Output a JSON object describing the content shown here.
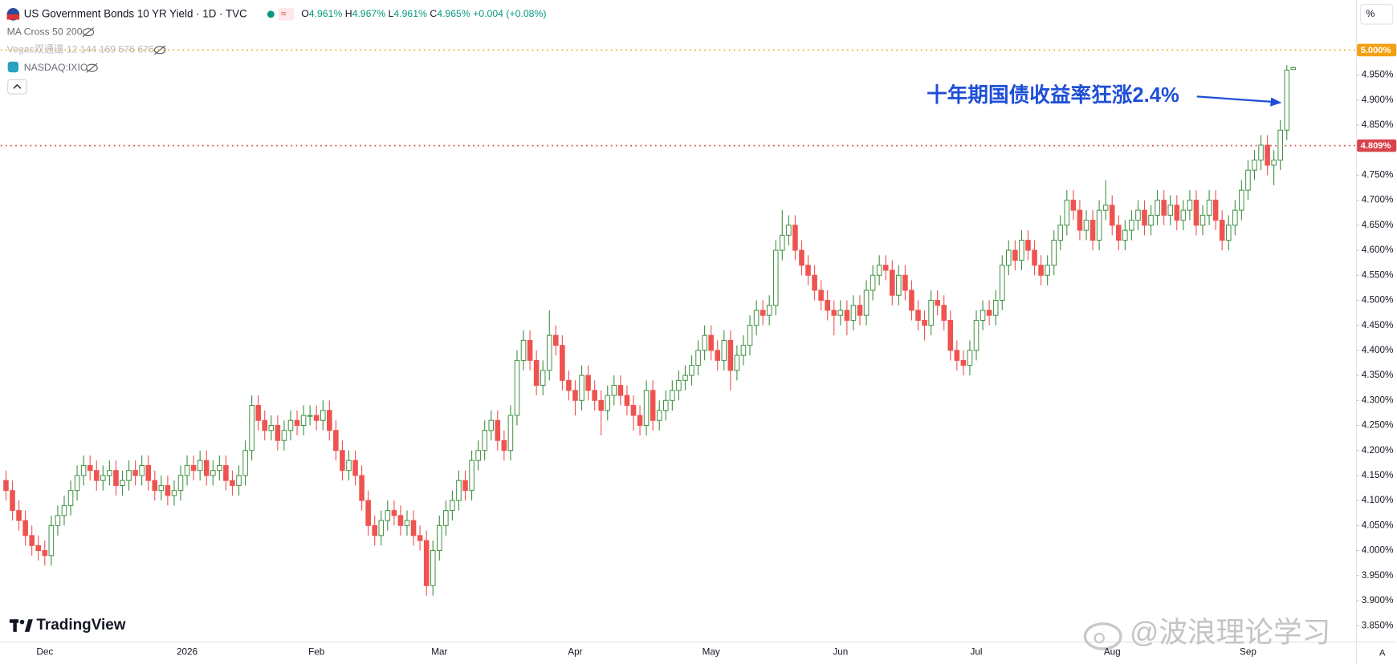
{
  "ui": {
    "symbol": "US Government Bonds 10 YR Yield · 1D · TVC",
    "ohlc": [
      {
        "key": "O",
        "value": "4.961%"
      },
      {
        "key": "H",
        "value": "4.967%"
      },
      {
        "key": "L",
        "value": "4.961%"
      },
      {
        "key": "C",
        "value": "4.965%"
      }
    ],
    "change": "+0.004 (+0.08%)",
    "indicators": [
      "MA Cross 50 200",
      "Vegas双通道 12 144 169 576 676",
      "NASDAQ:IXIC"
    ],
    "axis_unit": "%",
    "auto_button": "A",
    "brand": "TradingView",
    "watermark": "@波浪理论学习"
  },
  "chart_data": {
    "type": "candlestick",
    "up_color": "#3f9142",
    "down_color": "#ef5350",
    "annotation": "十年期国债收益率狂涨2.4%",
    "annotation_color": "#1f4fd6",
    "ylim": [
      3.818,
      5.1
    ],
    "yticks": [
      {
        "value": 3.85,
        "label": "3.850%"
      },
      {
        "value": 3.9,
        "label": "3.900%"
      },
      {
        "value": 3.95,
        "label": "3.950%"
      },
      {
        "value": 4.0,
        "label": "4.000%"
      },
      {
        "value": 4.05,
        "label": "4.050%"
      },
      {
        "value": 4.1,
        "label": "4.100%"
      },
      {
        "value": 4.15,
        "label": "4.150%"
      },
      {
        "value": 4.2,
        "label": "4.200%"
      },
      {
        "value": 4.25,
        "label": "4.250%"
      },
      {
        "value": 4.3,
        "label": "4.300%"
      },
      {
        "value": 4.35,
        "label": "4.350%"
      },
      {
        "value": 4.4,
        "label": "4.400%"
      },
      {
        "value": 4.45,
        "label": "4.450%"
      },
      {
        "value": 4.5,
        "label": "4.500%"
      },
      {
        "value": 4.55,
        "label": "4.550%"
      },
      {
        "value": 4.6,
        "label": "4.600%"
      },
      {
        "value": 4.65,
        "label": "4.650%"
      },
      {
        "value": 4.7,
        "label": "4.700%"
      },
      {
        "value": 4.75,
        "label": "4.750%"
      },
      {
        "value": 4.85,
        "label": "4.850%"
      },
      {
        "value": 4.9,
        "label": "4.900%"
      },
      {
        "value": 4.95,
        "label": "4.950%"
      }
    ],
    "price_lines": [
      {
        "value": 5.0,
        "label": "5.000%",
        "color": "#f5a011"
      },
      {
        "value": 4.809,
        "label": "4.809%",
        "color": "#d9434a"
      }
    ],
    "categories": [
      null,
      null,
      null,
      null,
      null,
      null,
      "Dec",
      null,
      null,
      null,
      null,
      null,
      null,
      null,
      null,
      null,
      null,
      null,
      null,
      null,
      null,
      null,
      null,
      null,
      null,
      null,
      null,
      null,
      "2026",
      null,
      null,
      null,
      null,
      null,
      null,
      null,
      null,
      null,
      null,
      null,
      null,
      null,
      null,
      null,
      null,
      null,
      null,
      null,
      "Feb",
      null,
      null,
      null,
      null,
      null,
      null,
      null,
      null,
      null,
      null,
      null,
      null,
      null,
      null,
      null,
      null,
      null,
      null,
      "Mar",
      null,
      null,
      null,
      null,
      null,
      null,
      null,
      null,
      null,
      null,
      null,
      null,
      null,
      null,
      null,
      null,
      null,
      null,
      null,
      null,
      "Apr",
      null,
      null,
      null,
      null,
      null,
      null,
      null,
      null,
      null,
      null,
      null,
      null,
      null,
      null,
      null,
      null,
      null,
      null,
      null,
      null,
      "May",
      null,
      null,
      null,
      null,
      null,
      null,
      null,
      null,
      null,
      null,
      null,
      null,
      null,
      null,
      null,
      null,
      null,
      null,
      null,
      "Jun",
      null,
      null,
      null,
      null,
      null,
      null,
      null,
      null,
      null,
      null,
      null,
      null,
      null,
      null,
      null,
      null,
      null,
      null,
      null,
      null,
      "Jul",
      null,
      null,
      null,
      null,
      null,
      null,
      null,
      null,
      null,
      null,
      null,
      null,
      null,
      null,
      null,
      null,
      null,
      null,
      null,
      null,
      "Aug",
      null,
      null,
      null,
      null,
      null,
      null,
      null,
      null,
      null,
      null,
      null,
      null,
      null,
      null,
      null,
      null,
      null,
      null,
      null,
      null,
      "Sep",
      null,
      null,
      null,
      null,
      null,
      null,
      null
    ],
    "open": [
      4.14,
      4.12,
      4.08,
      4.06,
      4.03,
      4.01,
      4.0,
      3.99,
      4.05,
      4.07,
      4.09,
      4.12,
      4.15,
      4.17,
      4.16,
      4.14,
      4.15,
      4.16,
      4.13,
      4.14,
      4.16,
      4.15,
      4.17,
      4.14,
      4.12,
      4.13,
      4.11,
      4.12,
      4.15,
      4.17,
      4.16,
      4.18,
      4.15,
      4.16,
      4.17,
      4.14,
      4.13,
      4.15,
      4.2,
      4.29,
      4.26,
      4.24,
      4.25,
      4.22,
      4.24,
      4.26,
      4.25,
      4.27,
      4.27,
      4.26,
      4.28,
      4.24,
      4.2,
      4.16,
      4.18,
      4.15,
      4.1,
      4.05,
      4.03,
      4.06,
      4.08,
      4.07,
      4.05,
      4.06,
      4.03,
      4.02,
      3.93,
      4.0,
      4.05,
      4.08,
      4.1,
      4.14,
      4.12,
      4.18,
      4.2,
      4.24,
      4.26,
      4.22,
      4.2,
      4.27,
      4.38,
      4.42,
      4.38,
      4.33,
      4.36,
      4.43,
      4.41,
      4.34,
      4.32,
      4.3,
      4.35,
      4.32,
      4.3,
      4.28,
      4.31,
      4.33,
      4.31,
      4.29,
      4.27,
      4.25,
      4.32,
      4.26,
      4.28,
      4.3,
      4.32,
      4.34,
      4.35,
      4.37,
      4.4,
      4.43,
      4.4,
      4.38,
      4.42,
      4.36,
      4.39,
      4.41,
      4.45,
      4.48,
      4.47,
      4.49,
      4.6,
      4.63,
      4.65,
      4.6,
      4.57,
      4.55,
      4.52,
      4.5,
      4.48,
      4.47,
      4.48,
      4.46,
      4.49,
      4.47,
      4.52,
      4.55,
      4.57,
      4.56,
      4.51,
      4.55,
      4.52,
      4.48,
      4.46,
      4.45,
      4.5,
      4.49,
      4.46,
      4.4,
      4.38,
      4.37,
      4.4,
      4.46,
      4.48,
      4.47,
      4.5,
      4.57,
      4.6,
      4.58,
      4.62,
      4.6,
      4.57,
      4.55,
      4.57,
      4.62,
      4.65,
      4.7,
      4.68,
      4.64,
      4.66,
      4.62,
      4.68,
      4.69,
      4.65,
      4.62,
      4.64,
      4.66,
      4.68,
      4.65,
      4.67,
      4.7,
      4.67,
      4.69,
      4.66,
      4.68,
      4.7,
      4.65,
      4.67,
      4.7,
      4.66,
      4.62,
      4.65,
      4.68,
      4.72,
      4.76,
      4.78,
      4.81,
      4.77,
      4.78,
      4.84,
      4.961
    ],
    "high": [
      4.16,
      4.14,
      4.1,
      4.08,
      4.05,
      4.03,
      4.02,
      4.07,
      4.09,
      4.11,
      4.14,
      4.17,
      4.19,
      4.19,
      4.18,
      4.17,
      4.18,
      4.18,
      4.16,
      4.18,
      4.18,
      4.19,
      4.19,
      4.16,
      4.15,
      4.15,
      4.14,
      4.17,
      4.19,
      4.19,
      4.2,
      4.2,
      4.18,
      4.19,
      4.19,
      4.16,
      4.17,
      4.22,
      4.31,
      4.31,
      4.28,
      4.27,
      4.27,
      4.26,
      4.28,
      4.28,
      4.29,
      4.29,
      4.29,
      4.3,
      4.3,
      4.26,
      4.22,
      4.2,
      4.2,
      4.17,
      4.12,
      4.07,
      4.08,
      4.1,
      4.1,
      4.09,
      4.08,
      4.08,
      4.05,
      4.04,
      4.02,
      4.07,
      4.1,
      4.12,
      4.16,
      4.16,
      4.2,
      4.22,
      4.26,
      4.28,
      4.28,
      4.24,
      4.29,
      4.4,
      4.44,
      4.44,
      4.4,
      4.38,
      4.48,
      4.45,
      4.43,
      4.36,
      4.34,
      4.37,
      4.37,
      4.34,
      4.32,
      4.33,
      4.35,
      4.35,
      4.33,
      4.31,
      4.29,
      4.34,
      4.34,
      4.3,
      4.32,
      4.34,
      4.36,
      4.37,
      4.39,
      4.42,
      4.45,
      4.45,
      4.42,
      4.44,
      4.44,
      4.41,
      4.43,
      4.47,
      4.5,
      4.5,
      4.51,
      4.62,
      4.68,
      4.67,
      4.67,
      4.62,
      4.59,
      4.57,
      4.54,
      4.52,
      4.5,
      4.5,
      4.5,
      4.51,
      4.51,
      4.54,
      4.57,
      4.59,
      4.59,
      4.58,
      4.57,
      4.57,
      4.54,
      4.5,
      4.48,
      4.52,
      4.52,
      4.51,
      4.48,
      4.42,
      4.4,
      4.42,
      4.48,
      4.5,
      4.5,
      4.52,
      4.59,
      4.62,
      4.62,
      4.64,
      4.64,
      4.62,
      4.59,
      4.59,
      4.64,
      4.67,
      4.72,
      4.72,
      4.7,
      4.68,
      4.68,
      4.7,
      4.74,
      4.71,
      4.67,
      4.66,
      4.68,
      4.7,
      4.7,
      4.69,
      4.72,
      4.72,
      4.71,
      4.71,
      4.7,
      4.72,
      4.72,
      4.69,
      4.72,
      4.72,
      4.68,
      4.67,
      4.7,
      4.74,
      4.78,
      4.8,
      4.83,
      4.83,
      4.8,
      4.86,
      4.97,
      4.967
    ],
    "low": [
      4.1,
      4.06,
      4.04,
      4.01,
      3.99,
      3.98,
      3.97,
      3.97,
      4.03,
      4.05,
      4.07,
      4.1,
      4.13,
      4.14,
      4.12,
      4.12,
      4.13,
      4.11,
      4.11,
      4.12,
      4.13,
      4.13,
      4.12,
      4.1,
      4.1,
      4.09,
      4.09,
      4.1,
      4.13,
      4.14,
      4.14,
      4.13,
      4.13,
      4.14,
      4.12,
      4.11,
      4.11,
      4.13,
      4.18,
      4.24,
      4.22,
      4.22,
      4.2,
      4.2,
      4.22,
      4.23,
      4.23,
      4.25,
      4.24,
      4.24,
      4.22,
      4.18,
      4.14,
      4.14,
      4.13,
      4.08,
      4.03,
      4.01,
      4.01,
      4.04,
      4.05,
      4.03,
      4.03,
      4.01,
      4.0,
      3.91,
      3.91,
      3.98,
      4.03,
      4.06,
      4.08,
      4.1,
      4.1,
      4.16,
      4.18,
      4.22,
      4.2,
      4.18,
      4.18,
      4.25,
      4.36,
      4.36,
      4.31,
      4.31,
      4.34,
      4.39,
      4.32,
      4.3,
      4.27,
      4.28,
      4.3,
      4.28,
      4.23,
      4.26,
      4.29,
      4.29,
      4.27,
      4.24,
      4.23,
      4.23,
      4.24,
      4.24,
      4.26,
      4.28,
      4.3,
      4.32,
      4.33,
      4.35,
      4.38,
      4.38,
      4.36,
      4.36,
      4.32,
      4.34,
      4.37,
      4.39,
      4.43,
      4.45,
      4.45,
      4.47,
      4.58,
      4.61,
      4.58,
      4.55,
      4.53,
      4.5,
      4.48,
      4.46,
      4.43,
      4.45,
      4.43,
      4.44,
      4.45,
      4.45,
      4.5,
      4.53,
      4.54,
      4.49,
      4.49,
      4.5,
      4.46,
      4.44,
      4.42,
      4.43,
      4.47,
      4.44,
      4.38,
      4.36,
      4.35,
      4.35,
      4.38,
      4.44,
      4.45,
      4.45,
      4.48,
      4.55,
      4.56,
      4.56,
      4.58,
      4.55,
      4.53,
      4.53,
      4.55,
      4.6,
      4.63,
      4.66,
      4.62,
      4.62,
      4.6,
      4.6,
      4.66,
      4.63,
      4.6,
      4.6,
      4.62,
      4.64,
      4.63,
      4.63,
      4.65,
      4.65,
      4.65,
      4.64,
      4.64,
      4.66,
      4.63,
      4.63,
      4.65,
      4.64,
      4.6,
      4.6,
      4.63,
      4.66,
      4.7,
      4.74,
      4.76,
      4.75,
      4.73,
      4.76,
      4.82,
      4.961
    ],
    "close": [
      4.12,
      4.08,
      4.06,
      4.03,
      4.01,
      4.0,
      3.99,
      4.05,
      4.07,
      4.09,
      4.12,
      4.15,
      4.17,
      4.16,
      4.14,
      4.15,
      4.16,
      4.13,
      4.14,
      4.16,
      4.15,
      4.17,
      4.14,
      4.12,
      4.13,
      4.11,
      4.12,
      4.15,
      4.17,
      4.16,
      4.18,
      4.15,
      4.16,
      4.17,
      4.14,
      4.13,
      4.15,
      4.2,
      4.29,
      4.26,
      4.24,
      4.25,
      4.22,
      4.24,
      4.26,
      4.25,
      4.27,
      4.27,
      4.26,
      4.28,
      4.24,
      4.2,
      4.16,
      4.18,
      4.15,
      4.1,
      4.05,
      4.03,
      4.06,
      4.08,
      4.07,
      4.05,
      4.06,
      4.03,
      4.02,
      3.93,
      4.0,
      4.05,
      4.08,
      4.1,
      4.14,
      4.12,
      4.18,
      4.2,
      4.24,
      4.26,
      4.22,
      4.2,
      4.27,
      4.38,
      4.42,
      4.38,
      4.33,
      4.36,
      4.43,
      4.41,
      4.34,
      4.32,
      4.3,
      4.35,
      4.32,
      4.3,
      4.28,
      4.31,
      4.33,
      4.31,
      4.29,
      4.27,
      4.25,
      4.32,
      4.26,
      4.28,
      4.3,
      4.32,
      4.34,
      4.35,
      4.37,
      4.4,
      4.43,
      4.4,
      4.38,
      4.42,
      4.36,
      4.39,
      4.41,
      4.45,
      4.48,
      4.47,
      4.49,
      4.6,
      4.63,
      4.65,
      4.6,
      4.57,
      4.55,
      4.52,
      4.5,
      4.48,
      4.47,
      4.48,
      4.46,
      4.49,
      4.47,
      4.52,
      4.55,
      4.57,
      4.56,
      4.51,
      4.55,
      4.52,
      4.48,
      4.46,
      4.45,
      4.5,
      4.49,
      4.46,
      4.4,
      4.38,
      4.37,
      4.4,
      4.46,
      4.48,
      4.47,
      4.5,
      4.57,
      4.6,
      4.58,
      4.62,
      4.6,
      4.57,
      4.55,
      4.57,
      4.62,
      4.65,
      4.7,
      4.68,
      4.64,
      4.66,
      4.62,
      4.68,
      4.69,
      4.65,
      4.62,
      4.64,
      4.66,
      4.68,
      4.65,
      4.67,
      4.7,
      4.67,
      4.69,
      4.66,
      4.68,
      4.7,
      4.65,
      4.67,
      4.7,
      4.66,
      4.62,
      4.65,
      4.68,
      4.72,
      4.76,
      4.78,
      4.81,
      4.77,
      4.78,
      4.84,
      4.96,
      4.965
    ]
  }
}
